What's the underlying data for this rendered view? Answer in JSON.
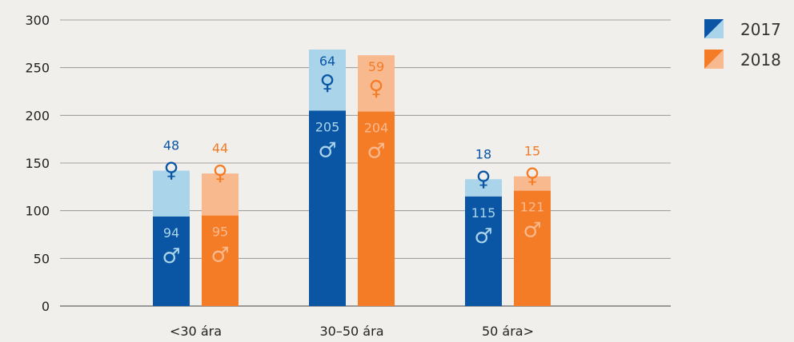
{
  "chart_data": {
    "type": "bar",
    "stacked": true,
    "categories": [
      "<30 ára",
      "30–50 ára",
      "50 ára>"
    ],
    "series": [
      {
        "name": "2017",
        "color_dark": "#0a56a5",
        "color_light": "#a9d4ea",
        "male": [
          94,
          205,
          115
        ],
        "female": [
          48,
          64,
          18
        ]
      },
      {
        "name": "2018",
        "color_dark": "#f47c27",
        "color_light": "#f9b98e",
        "male": [
          95,
          204,
          121
        ],
        "female": [
          44,
          59,
          15
        ]
      }
    ],
    "symbols": {
      "male": "♂",
      "female": "♀"
    },
    "ylim": [
      0,
      300
    ],
    "yticks": [
      0,
      50,
      100,
      150,
      200,
      250,
      300
    ],
    "grid": true,
    "legend": "top-right",
    "title": "",
    "xlabel": "",
    "ylabel": ""
  }
}
